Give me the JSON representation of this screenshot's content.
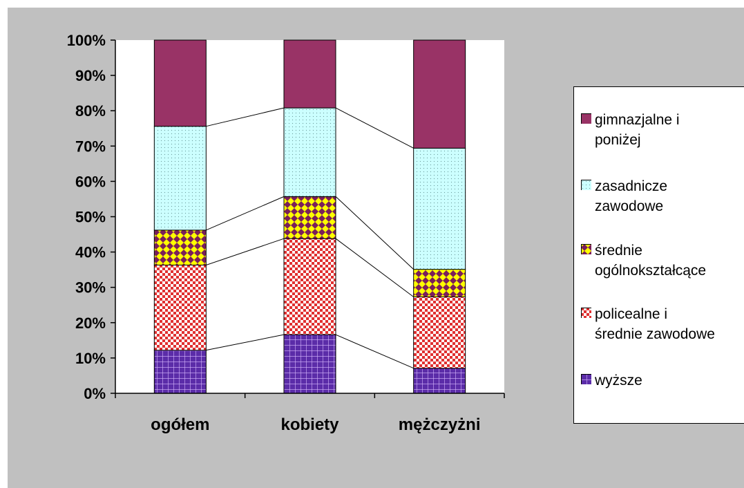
{
  "chart_data": {
    "type": "bar",
    "stacked": true,
    "normalized_percent": true,
    "categories": [
      "ogółem",
      "kobiety",
      "mężczyżni"
    ],
    "series": [
      {
        "name": "wyższe",
        "values": [
          12.2,
          16.6,
          7.1
        ],
        "color": "#5b2ca8",
        "pattern": "grid"
      },
      {
        "name": "policealne i średnie zawodowe",
        "values": [
          24.1,
          27.2,
          20.2
        ],
        "color": "#e03030",
        "pattern": "checker"
      },
      {
        "name": "średnie ogólnokształcące",
        "values": [
          9.9,
          11.9,
          7.8
        ],
        "color": "#ffff00",
        "pattern": "diamond"
      },
      {
        "name": "zasadnicze zawodowe",
        "values": [
          29.4,
          25.1,
          34.3
        ],
        "color": "#ccffff",
        "pattern": "dots"
      },
      {
        "name": "gimnazjalne i poniżej",
        "values": [
          24.4,
          19.2,
          30.6
        ],
        "color": "#993366",
        "pattern": "solid"
      }
    ],
    "yticks": [
      "0%",
      "10%",
      "20%",
      "30%",
      "40%",
      "50%",
      "60%",
      "70%",
      "80%",
      "90%",
      "100%"
    ],
    "ylim": [
      0,
      100
    ],
    "series_lines": true,
    "grid": false,
    "legend_position": "right"
  },
  "legend": {
    "items": [
      {
        "label_line1": "gimnazjalne i",
        "label_line2": "poniżej",
        "series": 4
      },
      {
        "label_line1": "zasadnicze",
        "label_line2": "zawodowe",
        "series": 3
      },
      {
        "label_line1": "średnie",
        "label_line2": "ogólnokształcące",
        "series": 2
      },
      {
        "label_line1": "policealne i",
        "label_line2": "średnie zawodowe",
        "series": 1
      },
      {
        "label_line1": "wyższe",
        "label_line2": "",
        "series": 0
      }
    ]
  }
}
